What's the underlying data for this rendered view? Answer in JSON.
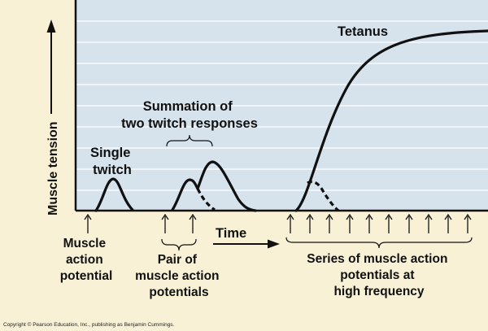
{
  "colors": {
    "background": "#f8f1d6",
    "plot_area": "#d7e3ec",
    "curve": "#111111"
  },
  "axes": {
    "y_label": "Muscle tension",
    "x_label": "Time"
  },
  "labels": {
    "single_twitch": [
      "Single",
      "twitch"
    ],
    "summation": [
      "Summation of",
      "two twitch responses"
    ],
    "tetanus": "Tetanus",
    "muscle_action_potential": [
      "Muscle",
      "action",
      "potential"
    ],
    "pair_of_potentials": [
      "Pair of",
      "muscle action",
      "potentials"
    ],
    "series_of_potentials": [
      "Series of muscle action",
      "potentials at",
      "high frequency"
    ]
  },
  "copyright": "Copyright © Pearson Education, Inc., publishing as Benjamin Cummings."
}
